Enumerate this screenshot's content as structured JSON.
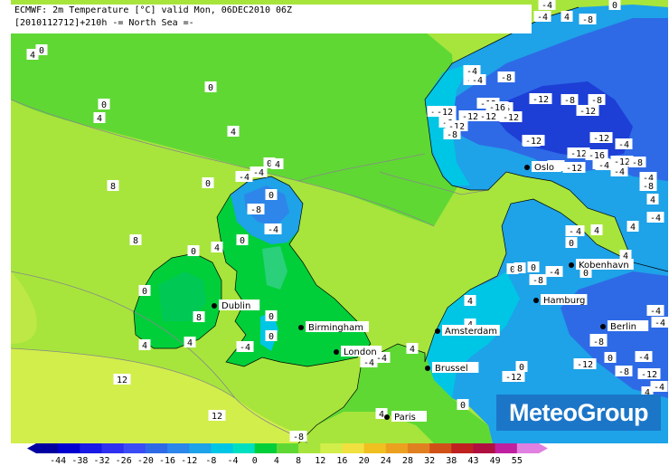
{
  "header": {
    "line1": "ECMWF: 2m Temperature [°C] valid Mon, 06DEC2010 06Z",
    "line2": "[2010112712]+210h  -= North Sea =-"
  },
  "logo": "MeteoGroup",
  "colors": {
    "sea_warm_yellow": "#d2ee4a",
    "sea_yellow_green": "#a7e53c",
    "sea_green": "#5fd834",
    "land_green": "#00cf3a",
    "cyan": "#00c6e6",
    "light_blue": "#1ea2e8",
    "blue": "#2e6ae6",
    "dark_blue": "#1d3fd6"
  },
  "cities": [
    {
      "name": "Dublin"
    },
    {
      "name": "Birmingham"
    },
    {
      "name": "London"
    },
    {
      "name": "Amsterdam"
    },
    {
      "name": "Brussel"
    },
    {
      "name": "Paris"
    },
    {
      "name": "Hamburg"
    },
    {
      "name": "Berlin"
    },
    {
      "name": "Kobenhavn"
    },
    {
      "name": "Oslo"
    }
  ],
  "temperature_labels": [
    "-4",
    "4",
    "-8",
    "0",
    "-4",
    "4",
    "0",
    "0",
    "-4",
    "-8",
    "-12",
    "-4",
    "-8",
    "-12",
    "-16",
    "-12",
    "-12",
    "-8",
    "-8",
    "-12",
    "-12",
    "-8",
    "-12",
    "-12",
    "-16",
    "-12",
    "-8",
    "-4",
    "-12",
    "-12",
    "-4",
    "-12",
    "-16",
    "-8",
    "-12",
    "-4",
    "-12",
    "-4",
    "-8",
    "-4",
    "0",
    "4",
    "4",
    "0",
    "8",
    "0",
    "4",
    "-4",
    "-4",
    "0",
    "4",
    "8",
    "-8",
    "-4",
    "4",
    "0",
    "0",
    "0",
    "-4",
    "-8",
    "4",
    "-4",
    "4",
    "0",
    "-4",
    "4",
    "4",
    "8",
    "4",
    "4",
    "-4",
    "0",
    "4",
    "0",
    "4",
    "-4",
    "0",
    "0",
    "4",
    "-4",
    "0",
    "-4",
    "-12",
    "-8",
    "-12",
    "-8",
    "-4",
    "-4",
    "-4",
    "0",
    "12",
    "12",
    "0",
    "4",
    "4",
    "4",
    "-4",
    "-8",
    "8",
    "0",
    "-8",
    "-12",
    "-8"
  ],
  "colorbar": {
    "ticks": [
      "-44",
      "-38",
      "-32",
      "-26",
      "-20",
      "-16",
      "-12",
      "-8",
      "-4",
      "0",
      "4",
      "8",
      "12",
      "16",
      "20",
      "24",
      "28",
      "32",
      "38",
      "43",
      "49",
      "55"
    ],
    "colors": [
      "#0000a0",
      "#0000d0",
      "#1a1ae6",
      "#3030f0",
      "#3c4cf5",
      "#2e6ae6",
      "#2d86ea",
      "#1ea2e8",
      "#00c6e6",
      "#00e0c0",
      "#00cf3a",
      "#5fd834",
      "#a7e53c",
      "#d2ee4a",
      "#f0e040",
      "#f0c020",
      "#eca020",
      "#e08020",
      "#d05018",
      "#c02020",
      "#b01040",
      "#c020a0",
      "#e080e0"
    ]
  }
}
